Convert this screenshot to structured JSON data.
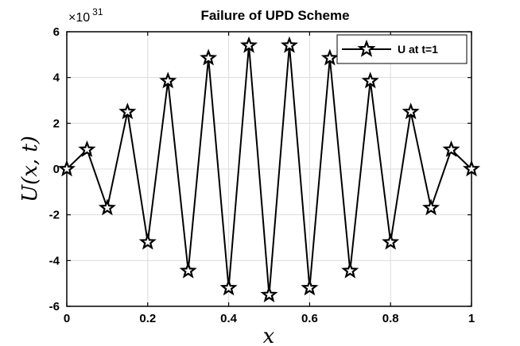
{
  "chart_data": {
    "type": "line",
    "title": "Failure of UPD Scheme",
    "xlabel": "x",
    "ylabel": "U(x, t)",
    "y_exponent_label": "×10",
    "y_exponent_power": "31",
    "xlim": [
      0,
      1
    ],
    "ylim": [
      -6,
      6
    ],
    "x_ticks": [
      0,
      0.2,
      0.4,
      0.6,
      0.8,
      1
    ],
    "x_tick_labels": [
      "0",
      "0.2",
      "0.4",
      "0.6",
      "0.8",
      "1"
    ],
    "y_ticks": [
      -6,
      -4,
      -2,
      0,
      2,
      4,
      6
    ],
    "y_tick_labels": [
      "-6",
      "-4",
      "-2",
      "0",
      "2",
      "4",
      "6"
    ],
    "grid": true,
    "legend_position": "top-right",
    "series": [
      {
        "name": "U at t=1",
        "color": "#000000",
        "marker": "star",
        "x": [
          0,
          0.05,
          0.1,
          0.15,
          0.2,
          0.25,
          0.3,
          0.35,
          0.4,
          0.45,
          0.5,
          0.55,
          0.6,
          0.65,
          0.7,
          0.75,
          0.8,
          0.85,
          0.9,
          0.95,
          1
        ],
        "y": [
          0,
          0.85,
          -1.7,
          2.5,
          -3.2,
          3.85,
          -4.45,
          4.85,
          -5.2,
          5.4,
          -5.5,
          5.4,
          -5.2,
          4.85,
          -4.45,
          3.85,
          -3.2,
          2.5,
          -1.7,
          0.85,
          0
        ]
      }
    ]
  }
}
